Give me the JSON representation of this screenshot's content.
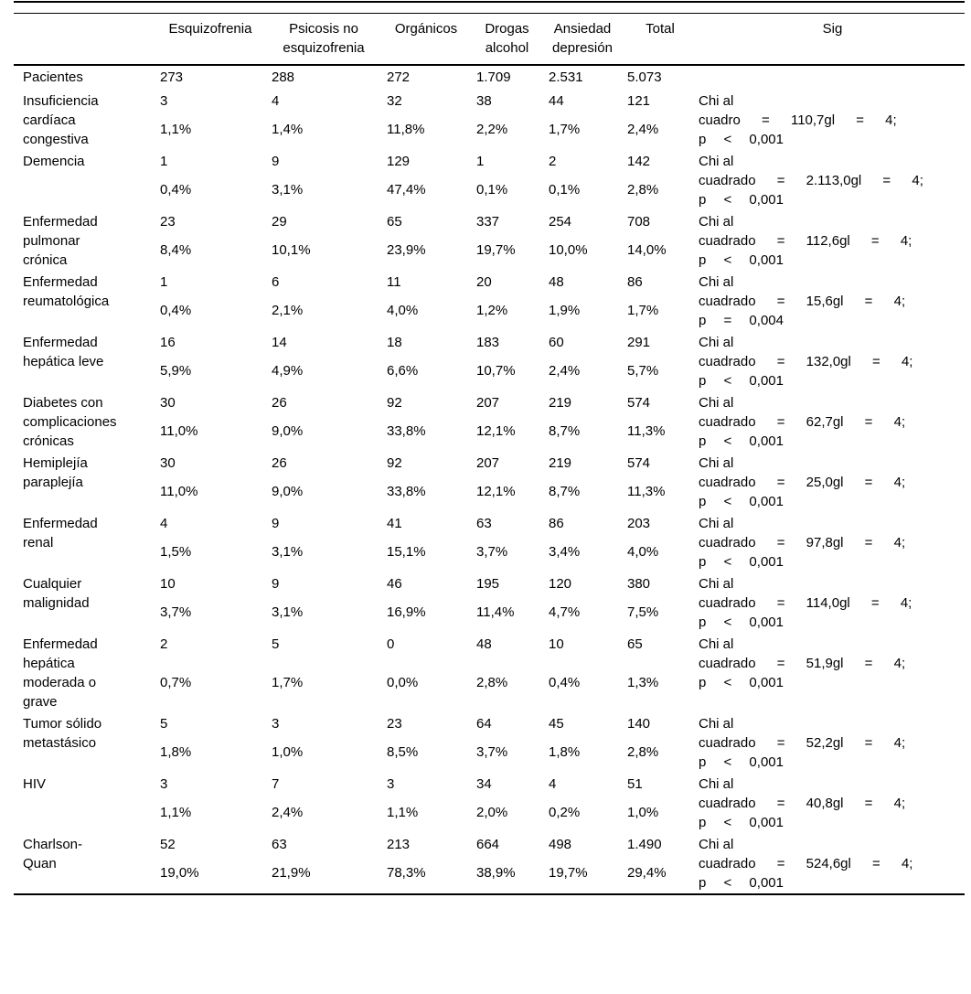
{
  "table": {
    "headers": [
      "",
      "Esquizofrenia",
      "Psicosis no\nesquizofrenia",
      "Orgánicos",
      "Drogas\nalcohol",
      "Ansiedad\ndepresión",
      "Total",
      "Sig"
    ],
    "patients_row": {
      "label": "Pacientes",
      "counts": [
        "273",
        "288",
        "272",
        "1.709",
        "2.531",
        "5.073"
      ]
    },
    "rows": [
      {
        "label": "Insuficiencia\ncardíaca\ncongestiva",
        "counts": [
          "3",
          "4",
          "32",
          "38",
          "44",
          "121"
        ],
        "percents": [
          "1,1%",
          "1,4%",
          "11,8%",
          "2,2%",
          "1,7%",
          "2,4%"
        ],
        "sig": [
          "Chi al",
          "cuadro = 110,7gl = 4;",
          "p < 0,001"
        ]
      },
      {
        "label": "Demencia",
        "counts": [
          "1",
          "9",
          "129",
          "1",
          "2",
          "142"
        ],
        "percents": [
          "0,4%",
          "3,1%",
          "47,4%",
          "0,1%",
          "0,1%",
          "2,8%"
        ],
        "sig": [
          "Chi al",
          "cuadrado = 2.113,0gl = 4;",
          "p < 0,001"
        ]
      },
      {
        "label": "Enfermedad\npulmonar\ncrónica",
        "counts": [
          "23",
          "29",
          "65",
          "337",
          "254",
          "708"
        ],
        "percents": [
          "8,4%",
          "10,1%",
          "23,9%",
          "19,7%",
          "10,0%",
          "14,0%"
        ],
        "sig": [
          "Chi al",
          "cuadrado = 112,6gl = 4;",
          "p < 0,001"
        ]
      },
      {
        "label": "Enfermedad\nreumatológica",
        "counts": [
          "1",
          "6",
          "11",
          "20",
          "48",
          "86"
        ],
        "percents": [
          "0,4%",
          "2,1%",
          "4,0%",
          "1,2%",
          "1,9%",
          "1,7%"
        ],
        "sig": [
          "Chi al",
          "cuadrado = 15,6gl = 4;",
          "p = 0,004"
        ]
      },
      {
        "label": "Enfermedad\nhepática leve",
        "counts": [
          "16",
          "14",
          "18",
          "183",
          "60",
          "291"
        ],
        "percents": [
          "5,9%",
          "4,9%",
          "6,6%",
          "10,7%",
          "2,4%",
          "5,7%"
        ],
        "sig": [
          "Chi al",
          "cuadrado = 132,0gl = 4;",
          "p < 0,001"
        ]
      },
      {
        "label": "Diabetes con\ncomplicaciones\ncrónicas",
        "counts": [
          "30",
          "26",
          "92",
          "207",
          "219",
          "574"
        ],
        "percents": [
          "11,0%",
          "9,0%",
          "33,8%",
          "12,1%",
          "8,7%",
          "11,3%"
        ],
        "sig": [
          "Chi al",
          "cuadrado = 62,7gl = 4;",
          "p < 0,001"
        ]
      },
      {
        "label": "Hemiplejía\nparaplejía",
        "counts": [
          "30",
          "26",
          "92",
          "207",
          "219",
          "574"
        ],
        "percents": [
          "11,0%",
          "9,0%",
          "33,8%",
          "12,1%",
          "8,7%",
          "11,3%"
        ],
        "sig": [
          "Chi al",
          "cuadrado = 25,0gl = 4;",
          "p < 0,001"
        ]
      },
      {
        "label": "Enfermedad\nrenal",
        "counts": [
          "4",
          "9",
          "41",
          "63",
          "86",
          "203"
        ],
        "percents": [
          "1,5%",
          "3,1%",
          "15,1%",
          "3,7%",
          "3,4%",
          "4,0%"
        ],
        "sig": [
          "Chi al",
          "cuadrado = 97,8gl = 4;",
          "p < 0,001"
        ]
      },
      {
        "label": "Cualquier\nmalignidad",
        "counts": [
          "10",
          "9",
          "46",
          "195",
          "120",
          "380"
        ],
        "percents": [
          "3,7%",
          "3,1%",
          "16,9%",
          "11,4%",
          "4,7%",
          "7,5%"
        ],
        "sig": [
          "Chi al",
          "cuadrado = 114,0gl = 4;",
          "p < 0,001"
        ]
      },
      {
        "label": "Enfermedad\nhepática\nmoderada o\ngrave",
        "counts": [
          "2",
          "5",
          "0",
          "48",
          "10",
          "65"
        ],
        "percents": [
          "0,7%",
          "1,7%",
          "0,0%",
          "2,8%",
          "0,4%",
          "1,3%"
        ],
        "sig": [
          "Chi al",
          "cuadrado = 51,9gl = 4;",
          "p < 0,001"
        ]
      },
      {
        "label": "Tumor sólido\nmetastásico",
        "counts": [
          "5",
          "3",
          "23",
          "64",
          "45",
          "140"
        ],
        "percents": [
          "1,8%",
          "1,0%",
          "8,5%",
          "3,7%",
          "1,8%",
          "2,8%"
        ],
        "sig": [
          "Chi al",
          "cuadrado = 52,2gl = 4;",
          "p < 0,001"
        ]
      },
      {
        "label": "HIV",
        "counts": [
          "3",
          "7",
          "3",
          "34",
          "4",
          "51"
        ],
        "percents": [
          "1,1%",
          "2,4%",
          "1,1%",
          "2,0%",
          "0,2%",
          "1,0%"
        ],
        "sig": [
          "Chi al",
          "cuadrado = 40,8gl = 4;",
          "p < 0,001"
        ]
      },
      {
        "label": "Charlson-\nQuan",
        "counts": [
          "52",
          "63",
          "213",
          "664",
          "498",
          "1.490"
        ],
        "percents": [
          "19,0%",
          "21,9%",
          "78,3%",
          "38,9%",
          "19,7%",
          "29,4%"
        ],
        "sig": [
          "Chi al",
          "cuadrado = 524,6gl = 4;",
          "p < 0,001"
        ]
      }
    ]
  }
}
